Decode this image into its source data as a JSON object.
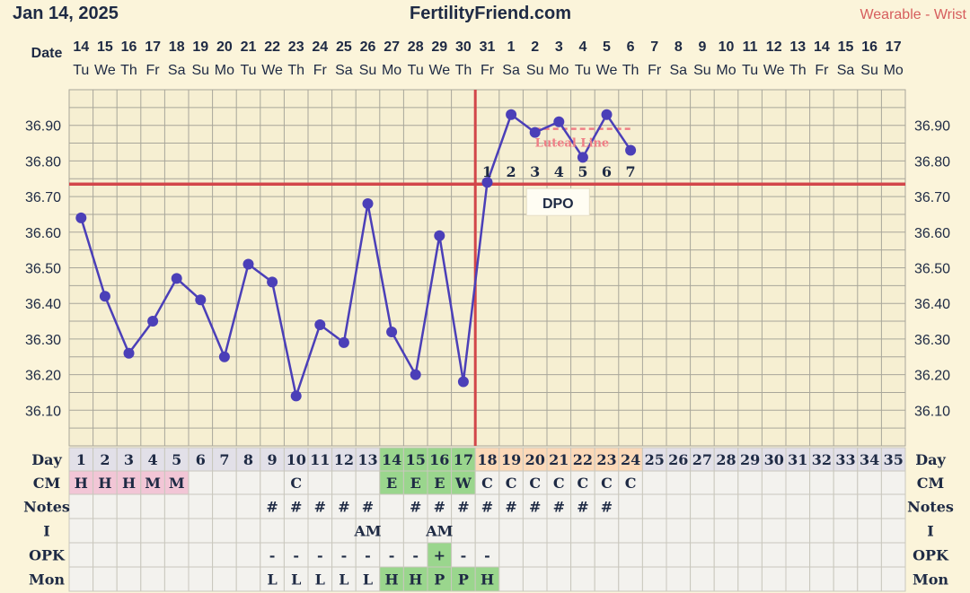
{
  "header": {
    "date": "Jan 14, 2025",
    "site": "FertilityFriend.com",
    "source": "Wearable - Wrist"
  },
  "labels": {
    "date_row": "Date",
    "day_row": "Day",
    "cm_row": "CM",
    "notes_row": "Notes",
    "i_row": "I",
    "opk_row": "OPK",
    "mon_row": "Mon",
    "coverline_label": "Luteal Line",
    "dpo_label": "DPO"
  },
  "colors": {
    "line": "#4b3fb8",
    "marker": "#4b3fb8",
    "coverline": "#d2464a",
    "luteal": "#ef7f86",
    "grid": "#a8a69a",
    "background": "#fbf4da",
    "menses_cell": "#f2c6d6",
    "fertile_cell": "#9ad68d",
    "luteal_cell": "#fcd9b8",
    "cycle_cell": "#e2e0e8"
  },
  "chart_data": {
    "type": "line",
    "x_dates": [
      "14",
      "15",
      "16",
      "17",
      "18",
      "19",
      "20",
      "21",
      "22",
      "23",
      "24",
      "25",
      "26",
      "27",
      "28",
      "29",
      "30",
      "31",
      "1",
      "2",
      "3",
      "4",
      "5",
      "6",
      "7",
      "8",
      "9",
      "10",
      "11",
      "12",
      "13",
      "14",
      "15",
      "16",
      "17"
    ],
    "x_weekdays": [
      "Tu",
      "We",
      "Th",
      "Fr",
      "Sa",
      "Su",
      "Mo",
      "Tu",
      "We",
      "Th",
      "Fr",
      "Sa",
      "Su",
      "Mo",
      "Tu",
      "We",
      "Th",
      "Fr",
      "Sa",
      "Su",
      "Mo",
      "Tu",
      "We",
      "Th",
      "Fr",
      "Sa",
      "Su",
      "Mo",
      "Tu",
      "We",
      "Th",
      "Fr",
      "Sa",
      "Su",
      "Mo"
    ],
    "cycle_days": [
      "1",
      "2",
      "3",
      "4",
      "5",
      "6",
      "7",
      "8",
      "9",
      "10",
      "11",
      "12",
      "13",
      "14",
      "15",
      "16",
      "17",
      "18",
      "19",
      "20",
      "21",
      "22",
      "23",
      "24",
      "25",
      "26",
      "27",
      "28",
      "29",
      "30",
      "31",
      "32",
      "33",
      "34",
      "35"
    ],
    "series": [
      {
        "values": [
          36.64,
          36.42,
          36.26,
          36.35,
          36.47,
          36.41,
          36.25,
          36.51,
          36.46,
          36.14,
          36.34,
          36.29,
          36.68,
          36.32,
          36.2,
          36.59,
          36.18,
          36.74,
          36.93,
          36.88,
          36.91,
          36.81,
          36.93,
          36.83
        ]
      }
    ],
    "ylim": [
      36.0,
      37.0
    ],
    "yticks": [
      "36.10",
      "36.20",
      "36.30",
      "36.40",
      "36.50",
      "36.60",
      "36.70",
      "36.80",
      "36.90"
    ],
    "coverline": 36.735,
    "ovulation_day": 17,
    "luteal_line": {
      "value": 36.89,
      "from_day": 20,
      "to_day": 24
    },
    "dpo": [
      "1",
      "2",
      "3",
      "4",
      "5",
      "6",
      "7"
    ],
    "dpo_start_day": 18,
    "grid": true
  },
  "rows": {
    "cm": [
      "H",
      "H",
      "H",
      "M",
      "M",
      "",
      "",
      "",
      "",
      "C",
      "",
      "",
      "",
      "E",
      "E",
      "E",
      "W",
      "C",
      "C",
      "C",
      "C",
      "C",
      "C",
      "C",
      "",
      "",
      "",
      "",
      "",
      "",
      "",
      "",
      "",
      "",
      ""
    ],
    "notes": [
      "",
      "",
      "",
      "",
      "",
      "",
      "",
      "",
      "#",
      "#",
      "#",
      "#",
      "#",
      "",
      "#",
      "#",
      "#",
      "#",
      "#",
      "#",
      "#",
      "#",
      "#",
      "",
      "",
      "",
      "",
      "",
      "",
      "",
      "",
      "",
      "",
      "",
      ""
    ],
    "i": [
      "",
      "",
      "",
      "",
      "",
      "",
      "",
      "",
      "",
      "",
      "",
      "",
      "AM",
      "",
      "",
      "AM",
      "",
      "",
      "",
      "",
      "",
      "",
      "",
      "",
      "",
      "",
      "",
      "",
      "",
      "",
      "",
      "",
      "",
      "",
      ""
    ],
    "opk": [
      "",
      "",
      "",
      "",
      "",
      "",
      "",
      "",
      "-",
      "-",
      "-",
      "-",
      "-",
      "-",
      "-",
      "+",
      "-",
      "-",
      "",
      "",
      "",
      "",
      "",
      "",
      "",
      "",
      "",
      "",
      "",
      "",
      "",
      "",
      "",
      "",
      ""
    ],
    "mon": [
      "",
      "",
      "",
      "",
      "",
      "",
      "",
      "",
      "L",
      "L",
      "L",
      "L",
      "L",
      "H",
      "H",
      "P",
      "P",
      "H",
      "",
      "",
      "",
      "",
      "",
      "",
      "",
      "",
      "",
      "",
      "",
      "",
      "",
      "",
      "",
      "",
      ""
    ]
  }
}
